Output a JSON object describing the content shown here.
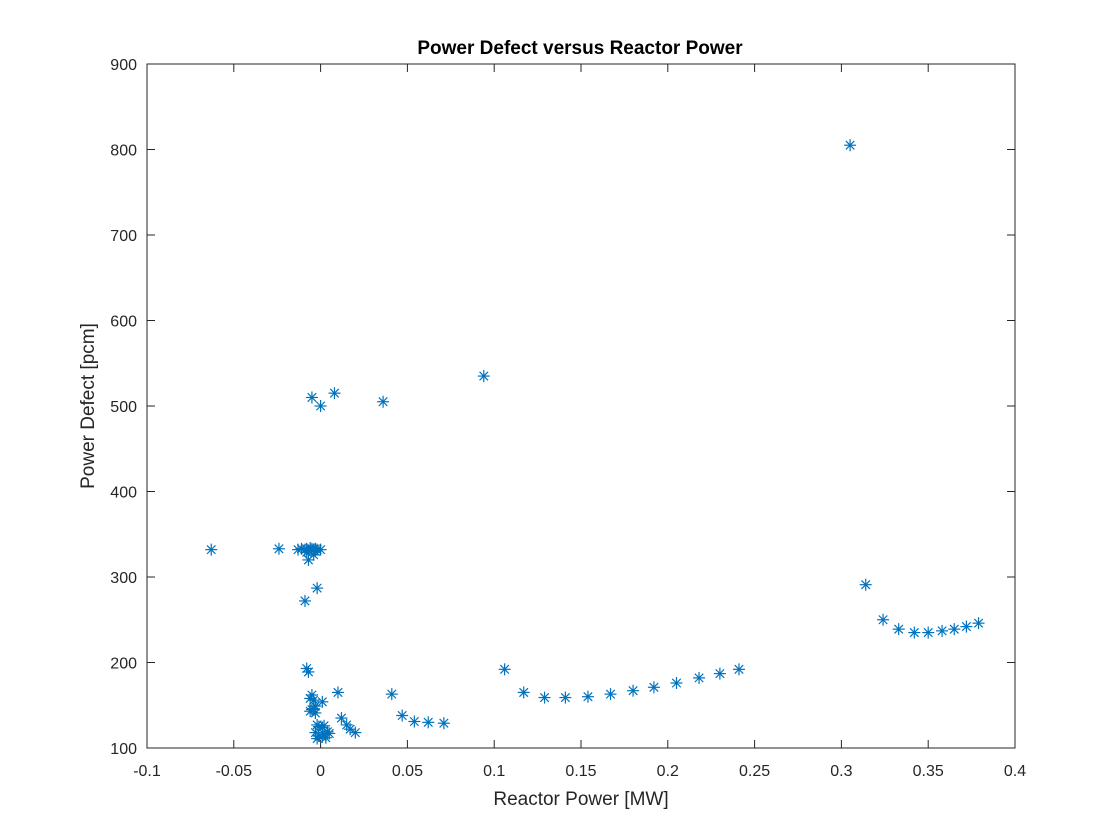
{
  "chart_data": {
    "type": "scatter",
    "title": "Power Defect versus Reactor Power",
    "xlabel": "Reactor Power [MW]",
    "ylabel": "Power Defect [pcm]",
    "xlim": [
      -0.1,
      0.4
    ],
    "ylim": [
      100,
      900
    ],
    "xticks": [
      -0.1,
      -0.05,
      0,
      0.05,
      0.1,
      0.15,
      0.2,
      0.25,
      0.3,
      0.35,
      0.4
    ],
    "xtick_labels": [
      "-0.1",
      "-0.05",
      "0",
      "0.05",
      "0.1",
      "0.15",
      "0.2",
      "0.25",
      "0.3",
      "0.35",
      "0.4"
    ],
    "yticks": [
      100,
      200,
      300,
      400,
      500,
      600,
      700,
      800,
      900
    ],
    "ytick_labels": [
      "100",
      "200",
      "300",
      "400",
      "500",
      "600",
      "700",
      "800",
      "900"
    ],
    "grid": false,
    "marker": "asterisk",
    "marker_color": "#0072BD",
    "series": [
      {
        "x": [
          -0.063,
          -0.024,
          -0.013,
          -0.011,
          -0.009,
          -0.008,
          -0.007,
          -0.006,
          -0.005,
          -0.004,
          -0.003,
          -0.002,
          0.0,
          -0.008,
          -0.007,
          -0.004,
          -0.003,
          -0.009,
          -0.002,
          -0.008,
          -0.007,
          -0.006,
          -0.005,
          -0.004,
          -0.005,
          -0.003,
          -0.006,
          -0.004,
          -0.003,
          -0.002,
          -0.001,
          0.001,
          0.002,
          -0.003,
          -0.001,
          0.002,
          0.004,
          -0.002,
          0.001,
          0.003,
          0.001,
          0.005,
          0.01,
          0.012,
          0.015,
          0.017,
          0.02,
          -0.005,
          0.0,
          0.008,
          0.036,
          0.094,
          0.041,
          0.047,
          0.054,
          0.062,
          0.071,
          0.106,
          0.117,
          0.129,
          0.141,
          0.154,
          0.167,
          0.18,
          0.192,
          0.205,
          0.218,
          0.23,
          0.241,
          0.305,
          0.314,
          0.324,
          0.333,
          0.342,
          0.35,
          0.358,
          0.365,
          0.372,
          0.379
        ],
        "y": [
          332,
          333,
          332,
          333,
          332,
          333,
          331,
          334,
          333,
          332,
          333,
          332,
          332,
          329,
          320,
          326,
          330,
          272,
          287,
          193,
          189,
          158,
          162,
          156,
          145,
          149,
          143,
          146,
          141,
          127,
          125,
          124,
          126,
          118,
          114,
          116,
          119,
          111,
          113,
          112,
          154,
          117,
          165,
          135,
          127,
          122,
          118,
          510,
          500,
          515,
          505,
          535,
          163,
          138,
          131,
          130,
          129,
          192,
          165,
          159,
          159,
          160,
          163,
          167,
          171,
          176,
          182,
          187,
          192,
          805,
          291,
          250,
          239,
          235,
          235,
          237,
          239,
          242,
          246
        ]
      }
    ]
  }
}
